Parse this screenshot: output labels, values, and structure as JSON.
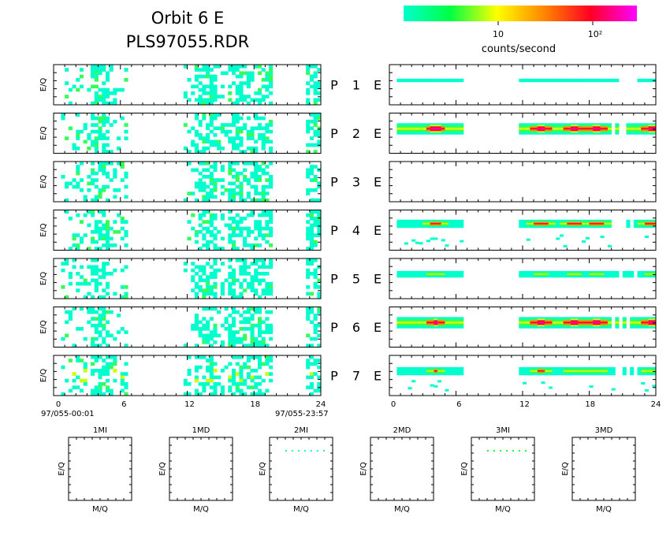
{
  "header": {
    "title": "Orbit 6 E",
    "subtitle": "PLS97055.RDR"
  },
  "colorbar": {
    "gradient": [
      "#00ffcc",
      "#00ff44",
      "#ffff00",
      "#ff8800",
      "#ff0022",
      "#ff00ff"
    ],
    "tick_labels": [
      "10",
      "10²"
    ],
    "unit_label": "counts/second"
  },
  "rows": [
    {
      "panel": "P",
      "num": "1",
      "channel": "E"
    },
    {
      "panel": "P",
      "num": "2",
      "channel": "E"
    },
    {
      "panel": "P",
      "num": "3",
      "channel": "E"
    },
    {
      "panel": "P",
      "num": "4",
      "channel": "E"
    },
    {
      "panel": "P",
      "num": "5",
      "channel": "E"
    },
    {
      "panel": "P",
      "num": "6",
      "channel": "E"
    },
    {
      "panel": "P",
      "num": "7",
      "channel": "E"
    }
  ],
  "axes": {
    "ylabel": "E/Q",
    "xticks": [
      "0",
      "6",
      "12",
      "18",
      "24"
    ],
    "time_start": "97/055-00:01",
    "time_end": "97/055-23:57"
  },
  "mq_panels": {
    "titles": [
      "1MI",
      "1MD",
      "2MI",
      "2MD",
      "3MI",
      "3MD"
    ],
    "xlabel": "M/Q",
    "ylabel": "E/Q"
  },
  "chart_data": {
    "type": "heatmap",
    "description_x": "hour of day",
    "xlim": [
      0,
      24
    ],
    "xticks": [
      0,
      6,
      12,
      18,
      24
    ],
    "left_column_activity_hours": [
      [
        0.5,
        6.5
      ],
      [
        11.5,
        19.5
      ],
      [
        22.5,
        24
      ]
    ],
    "right_column_activity_hours": [
      [
        0.5,
        6.5
      ],
      [
        11.5,
        24
      ]
    ],
    "peak_hours": [
      4,
      13.5,
      16.5,
      18.5,
      23.5
    ],
    "colorbar_scale": "log",
    "mq_dotted_lines": [
      {
        "panel": "2MI",
        "color": "#00ffcc"
      },
      {
        "panel": "3MI",
        "color": "#00ff44"
      }
    ]
  }
}
